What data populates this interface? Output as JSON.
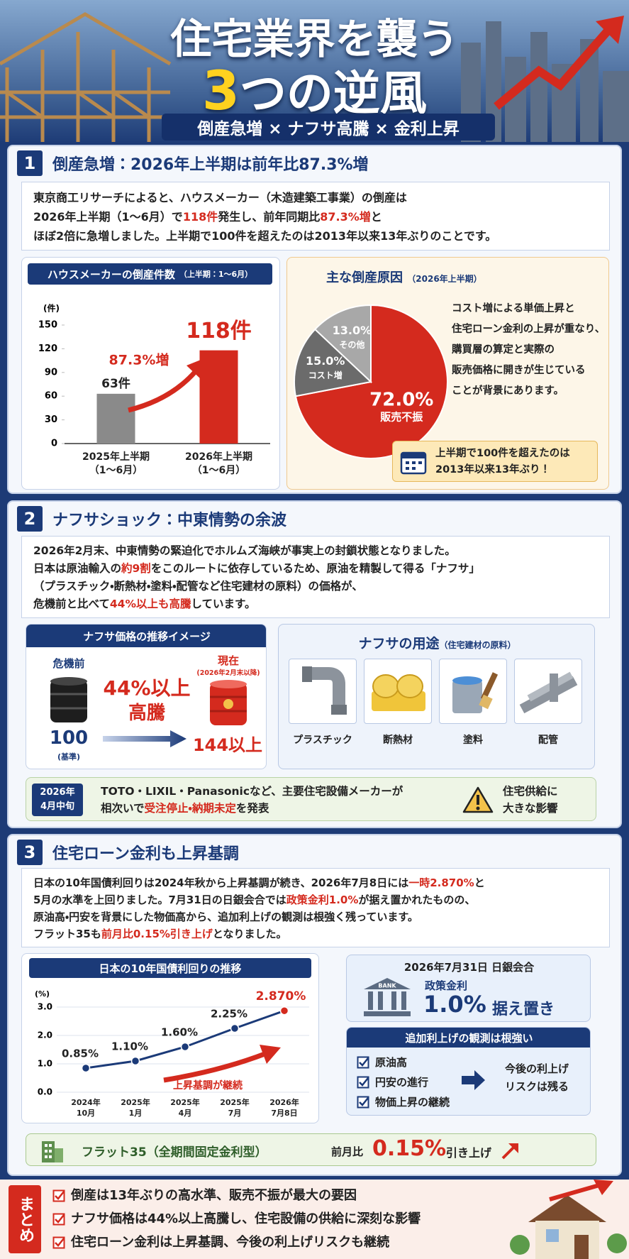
{
  "header": {
    "title_line1": "住宅業界を襲う",
    "title_line2": [
      {
        "text": "3",
        "em": true
      },
      {
        "text": "つの逆風"
      }
    ],
    "subtitle": "倒産急増 × ナフサ高騰 × 金利上昇"
  },
  "sections": [
    {
      "number": "1",
      "heading": "倒産急増：2026年上半期は前年比87.3%増",
      "body": [
        [
          {
            "text": "東京商工リサーチによると、ハウスメーカー（木造建築工事業）の倒産は"
          }
        ],
        [
          {
            "text": "2026年上半期（1〜6月）で"
          },
          {
            "text": "118件",
            "em": true
          },
          {
            "text": "発生し、前年同期比"
          },
          {
            "text": "87.3%増",
            "em": true
          },
          {
            "text": "と"
          }
        ],
        [
          {
            "text": "ほぼ2倍に急増しました。上半期で100件を超えたのは2013年以来13年ぶりのことです。"
          }
        ]
      ],
      "cause_note": [
        "コスト増による単価上昇と",
        "住宅ローン金利の上昇が重なり、",
        "購買層の算定と実際の",
        "販売価格に開きが生じている",
        "ことが背景にあります。"
      ],
      "callout": [
        "上半期で100件を超えたのは",
        "2013年以来13年ぶり！"
      ]
    },
    {
      "number": "2",
      "heading": "ナフサショック：中東情勢の余波",
      "body": [
        [
          {
            "text": "2026年2月末、中東情勢の緊迫化でホルムズ海峡が事実上の封鎖状態となりました。"
          }
        ],
        [
          {
            "text": "日本は原油輸入の"
          },
          {
            "text": "約9割",
            "em": true
          },
          {
            "text": "をこのルートに依存しているため、原油を精製して得る「ナフサ」"
          }
        ],
        [
          {
            "text": "（プラスチック・断熱材・塗料・配管など住宅建材の原料）の価格が、"
          }
        ],
        [
          {
            "text": "危機前と比べて"
          },
          {
            "text": "44%以上も高騰",
            "em": true
          },
          {
            "text": "しています。"
          }
        ]
      ],
      "price_panel": {
        "title": "ナフサ価格の推移イメージ",
        "before_label": "危機前",
        "before_value": "100",
        "before_note": "(基準)",
        "after_label": "現在",
        "after_note": "(2026年2月末以降)",
        "change": "44%以上",
        "change_word": "高騰",
        "after_value": "144以上"
      },
      "uses_panel": {
        "title": "ナフサの用途",
        "subtitle": "（住宅建材の原料）",
        "items": [
          "プラスチック",
          "断熱材",
          "塗料",
          "配管"
        ]
      },
      "alert": {
        "date": [
          "2026年",
          "4月中旬"
        ],
        "text": [
          [
            {
              "text": "TOTO・LIXIL・Panasonicなど、主要住宅設備メーカーが"
            }
          ],
          [
            {
              "text": "相次いで"
            },
            {
              "text": "受注停止・納期未定",
              "em": true
            },
            {
              "text": "を発表"
            }
          ]
        ],
        "impact": [
          "住宅供給に",
          "大きな影響"
        ]
      }
    },
    {
      "number": "3",
      "heading": "住宅ローン金利も上昇基調",
      "body": [
        [
          {
            "text": "日本の10年国債利回りは2024年秋から上昇基調が続き、2026年7月8日には"
          },
          {
            "text": "一時2.870%",
            "em": true
          },
          {
            "text": "と"
          }
        ],
        [
          {
            "text": "5月の水準を上回りました。7月31日の日銀会合では"
          },
          {
            "text": "政策金利1.0%",
            "em": true
          },
          {
            "text": "が据え置かれたものの、"
          }
        ],
        [
          {
            "text": "原油高・円安を背景にした物価高から、追加利上げの観測は根強く残っています。"
          }
        ],
        [
          {
            "text": "フラット35も"
          },
          {
            "text": "前月比0.15%引き上げ",
            "em": true
          },
          {
            "text": "となりました。"
          }
        ]
      ],
      "boj": {
        "title": "2026年7月31日 日銀会合",
        "icon": "BANK",
        "label": "政策金利",
        "value": "1.0%",
        "status": "据え置き"
      },
      "outlook": {
        "title": "追加利上げの観測は根強い",
        "items": [
          "原油高",
          "円安の進行",
          "物価上昇の継続"
        ],
        "result": [
          "今後の利上げ",
          "リスクは残る"
        ]
      },
      "flat35": {
        "name": "フラット35（全期間固定金利型）",
        "prefix": "前月比",
        "value": "0.15%",
        "suffix": "引き上げ"
      }
    }
  ],
  "summary": {
    "label": "まとめ",
    "items": [
      "倒産は13年ぶりの高水準、販売不振が最大の要因",
      "ナフサ価格は44%以上高騰し、住宅設備の供給に深刻な影響",
      "住宅ローン金利は上昇基調、今後の利上げリスクも継続"
    ]
  },
  "chart_data": [
    {
      "type": "bar",
      "title": "ハウスメーカーの倒産件数",
      "subtitle": "（上半期：1〜6月）",
      "ylabel": "(件)",
      "categories": [
        "2025年上半期\n（1〜6月）",
        "2026年上半期\n（1〜6月）"
      ],
      "values": [
        63,
        118
      ],
      "value_labels": [
        "63件",
        "118件"
      ],
      "colors": [
        "#8a8a8a",
        "#d42a1e"
      ],
      "ylim": [
        0,
        150
      ],
      "yticks": [
        0,
        30,
        60,
        90,
        120,
        150
      ],
      "grid": false,
      "annotation": "87.3%増"
    },
    {
      "type": "pie",
      "title": "主な倒産原因",
      "subtitle": "（2026年上半期）",
      "categories": [
        "販売不振",
        "コスト増",
        "その他"
      ],
      "values": [
        72.0,
        15.0,
        13.0
      ],
      "value_labels": [
        "72.0%",
        "15.0%",
        "13.0%"
      ],
      "colors": [
        "#d42a1e",
        "#6b6b6b",
        "#a8a8a8"
      ]
    },
    {
      "type": "line",
      "title": "日本の10年国債利回りの推移",
      "ylabel": "(%)",
      "categories": [
        "2024年\n10月",
        "2025年\n1月",
        "2025年\n4月",
        "2025年\n7月",
        "2026年\n7月8日"
      ],
      "values": [
        0.85,
        1.1,
        1.6,
        2.25,
        2.87
      ],
      "value_labels": [
        "0.85%",
        "1.10%",
        "1.60%",
        "2.25%",
        "2.870%"
      ],
      "color": "#1b3a78",
      "highlight_color": "#d42a1e",
      "ylim": [
        0,
        3.0
      ],
      "yticks": [
        {
          "value": 0,
          "label": "0.0"
        },
        {
          "value": 1,
          "label": "1.0"
        },
        {
          "value": 2,
          "label": "2.0"
        },
        {
          "value": 3,
          "label": "3.0"
        }
      ],
      "grid": true,
      "annotation": "上昇基調が継続"
    }
  ]
}
